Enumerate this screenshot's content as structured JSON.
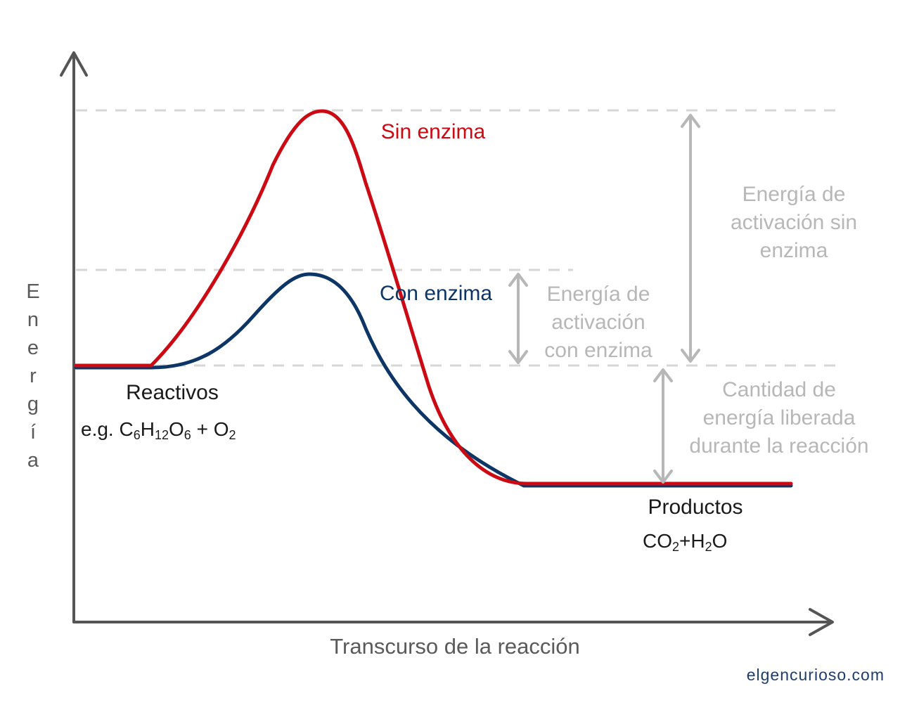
{
  "axes": {
    "y_label_letters": [
      "E",
      "n",
      "e",
      "r",
      "g",
      "í",
      "a"
    ],
    "x_label": "Transcurso de la reacción"
  },
  "curves": {
    "without_enzyme": {
      "label": "Sin enzima",
      "color": "#cc0a14"
    },
    "with_enzyme": {
      "label": "Con enzima",
      "color": "#0d3566"
    }
  },
  "annotations": {
    "activation_without": [
      "Energía de",
      "activación sin",
      "enzima"
    ],
    "activation_with": [
      "Energía de",
      "activación",
      "con enzima"
    ],
    "energy_released": [
      "Cantidad de",
      "energía liberada",
      "durante la reacción"
    ]
  },
  "reactants": {
    "label": "Reactivos",
    "formula": {
      "prefix": "e.g. ",
      "c": "C",
      "c_sub": "6",
      "h": "H",
      "h_sub": "12",
      "o": "O",
      "o_sub": "6",
      "plus": " + O",
      "o2_sub": "2"
    }
  },
  "products": {
    "label": "Productos",
    "formula": {
      "co": "CO",
      "co_sub": "2",
      "plus_h": "+H",
      "h_sub": "2",
      "o": "O"
    }
  },
  "colors": {
    "axis": "#555555",
    "guide": "#d6d6d6",
    "annotation": "#b7b7b7",
    "credit": "#1f3d6b"
  },
  "credit": "elgencurioso.com"
}
